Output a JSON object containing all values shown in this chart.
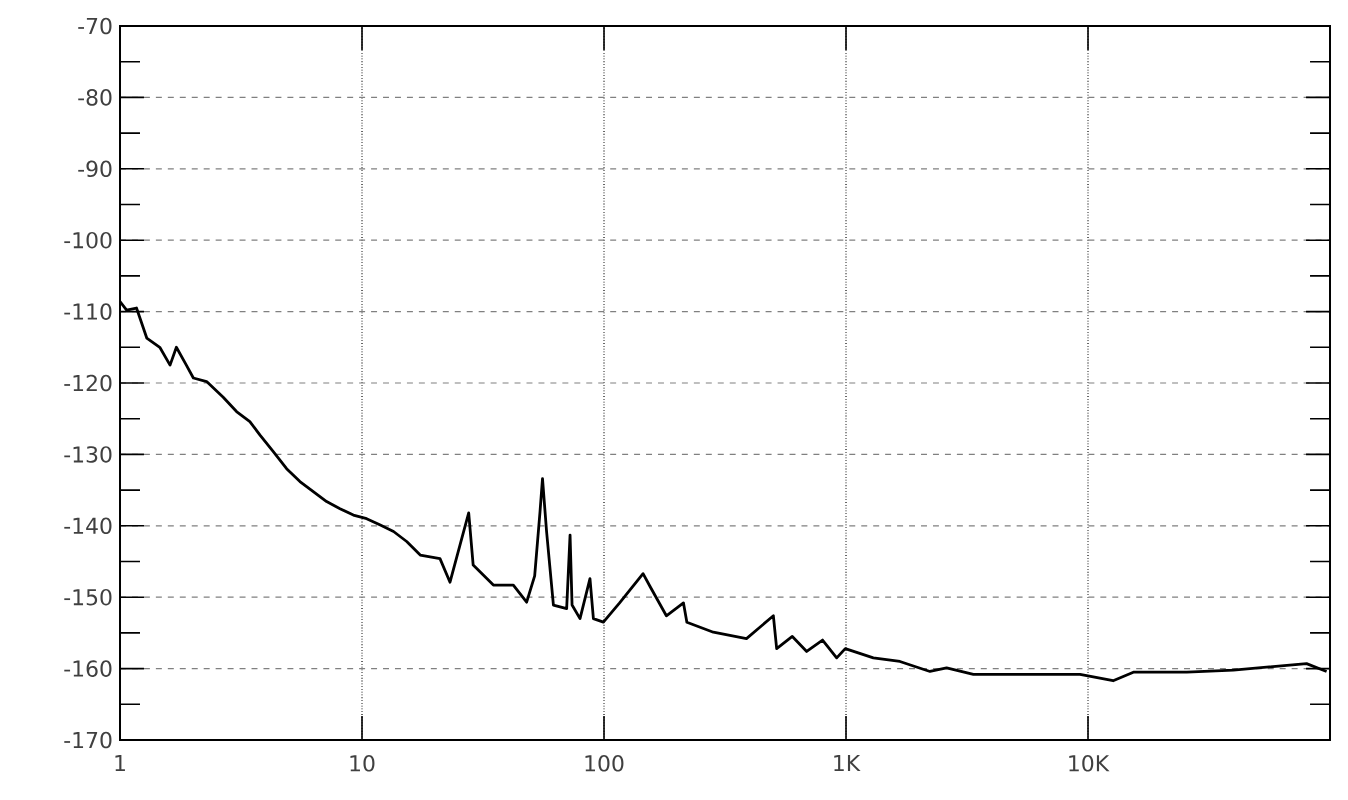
{
  "chart_data": {
    "type": "line",
    "log": "x",
    "grid": true,
    "marker": "none",
    "line_style": "solid",
    "color": "#000000",
    "xlim": [
      1,
      100000
    ],
    "ylim": [
      -170,
      -70
    ],
    "xticks": [
      1,
      10,
      100,
      {
        "value": 1000,
        "label": "1K"
      },
      {
        "value": 10000,
        "label": "10K"
      }
    ],
    "yticks": [
      -170,
      -160,
      -150,
      -140,
      -130,
      -120,
      -110,
      -100,
      -90,
      -80,
      -70
    ],
    "x": [
      1,
      1.065,
      1.17,
      1.29,
      1.46,
      1.61,
      1.71,
      1.88,
      2.01,
      2.28,
      2.67,
      3.03,
      3.44,
      3.79,
      4.3,
      4.88,
      5.54,
      6.29,
      7.14,
      8.11,
      9.21,
      10.45,
      11.9,
      13.5,
      15.3,
      17.4,
      21,
      23.1,
      25.4,
      27.6,
      28.8,
      34.9,
      42.2,
      47.9,
      51.7,
      54.4,
      55.7,
      57.9,
      61.8,
      70.1,
      72.4,
      73.8,
      79.6,
      87.5,
      90.4,
      99.4,
      116,
      145,
      155,
      181,
      213,
      220,
      283,
      388,
      501,
      517,
      600,
      688,
      800,
      915,
      993,
      1297,
      1670,
      2223,
      2605,
      3360,
      5940,
      9270,
      12700,
      15400,
      25600,
      39900,
      80000,
      96800
    ],
    "values": [
      -108.6,
      -109.8,
      -109.5,
      -113.7,
      -115,
      -117.5,
      -115,
      -117.5,
      -119.3,
      -119.8,
      -122,
      -124,
      -125.4,
      -127.3,
      -129.6,
      -132,
      -133.8,
      -135.2,
      -136.6,
      -137.6,
      -138.5,
      -139,
      -139.9,
      -140.8,
      -142.2,
      -144.1,
      -144.6,
      -147.9,
      -142.7,
      -138.2,
      -145.5,
      -148.3,
      -148.3,
      -150.7,
      -147,
      -138,
      -133.4,
      -140.8,
      -151.1,
      -151.6,
      -141.3,
      -151.1,
      -153,
      -147.4,
      -153,
      -153.5,
      -150.8,
      -146.7,
      -148.5,
      -152.6,
      -150.8,
      -153.5,
      -154.9,
      -155.8,
      -152.6,
      -157.2,
      -155.5,
      -157.6,
      -156,
      -158.5,
      -157.2,
      -158.5,
      -159,
      -160.4,
      -159.9,
      -160.8,
      -160.8,
      -160.8,
      -161.7,
      -160.5,
      -160.5,
      -160.2,
      -159.3,
      -160.4
    ]
  }
}
